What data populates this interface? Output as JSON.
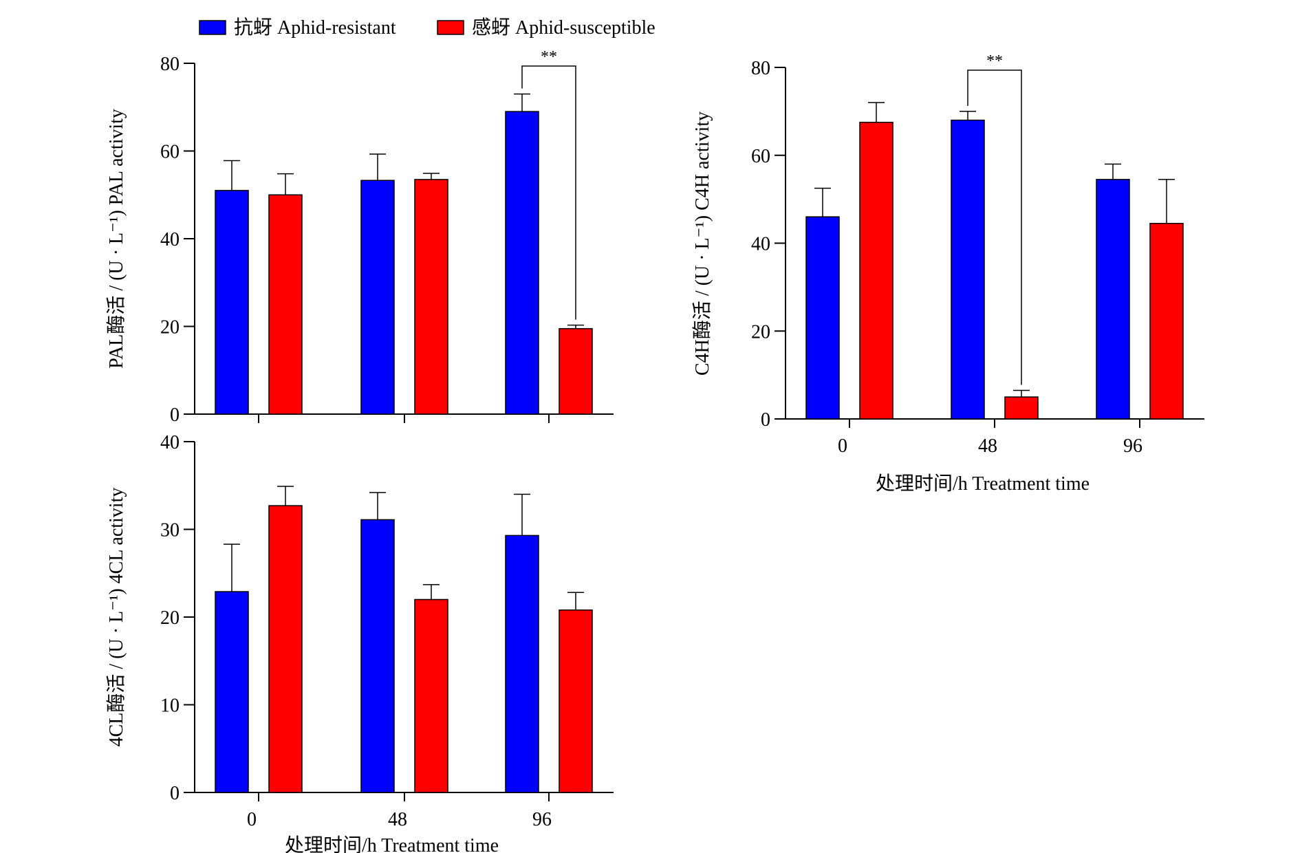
{
  "legend": {
    "position": "top",
    "entries": [
      {
        "label": "抗蚜 Aphid-resistant",
        "color": "#0000ff"
      },
      {
        "label": "感蚜 Aphid-susceptible",
        "color": "#ff0000"
      }
    ]
  },
  "chart_data": [
    {
      "id": "pal",
      "type": "bar",
      "ylabel": "PAL酶活 / (U · L⁻¹)  PAL activity",
      "xlabel": "",
      "categories": [
        "0",
        "48",
        "96"
      ],
      "show_category_labels": false,
      "ylim": [
        0,
        80
      ],
      "yticks": [
        0,
        20,
        40,
        60,
        80
      ],
      "series": [
        {
          "name": "抗蚜 Aphid-resistant",
          "color": "#0000ff",
          "values": [
            51,
            53.3,
            69
          ],
          "errors": [
            6.8,
            6,
            4
          ]
        },
        {
          "name": "感蚜 Aphid-susceptible",
          "color": "#ff0000",
          "values": [
            50,
            53.5,
            19.5
          ],
          "errors": [
            4.8,
            1.4,
            0.8
          ]
        }
      ],
      "significance": [
        {
          "label": "**",
          "category_index": 2
        }
      ]
    },
    {
      "id": "c4h",
      "type": "bar",
      "ylabel": "C4H酶活 / (U · L⁻¹)  C4H activity",
      "xlabel": "处理时间/h Treatment time",
      "categories": [
        "0",
        "48",
        "96"
      ],
      "show_category_labels": true,
      "ylim": [
        0,
        80
      ],
      "yticks": [
        0,
        20,
        40,
        60,
        80
      ],
      "series": [
        {
          "name": "抗蚜 Aphid-resistant",
          "color": "#0000ff",
          "values": [
            46,
            68,
            54.5
          ],
          "errors": [
            6.5,
            2,
            3.5
          ]
        },
        {
          "name": "感蚜 Aphid-susceptible",
          "color": "#ff0000",
          "values": [
            67.5,
            5,
            44.5
          ],
          "errors": [
            4.5,
            1.5,
            10
          ]
        }
      ],
      "significance": [
        {
          "label": "**",
          "category_index": 1
        }
      ]
    },
    {
      "id": "4cl",
      "type": "bar",
      "ylabel": "4CL酶活 / (U · L⁻¹)  4CL activity",
      "xlabel": "处理时间/h Treatment time",
      "categories": [
        "0",
        "48",
        "96"
      ],
      "show_category_labels": true,
      "ylim": [
        0,
        40
      ],
      "yticks": [
        0,
        10,
        20,
        30,
        40
      ],
      "series": [
        {
          "name": "抗蚜 Aphid-resistant",
          "color": "#0000ff",
          "values": [
            22.9,
            31.1,
            29.3
          ],
          "errors": [
            5.4,
            3.1,
            4.7
          ]
        },
        {
          "name": "感蚜 Aphid-susceptible",
          "color": "#ff0000",
          "values": [
            32.7,
            22,
            20.8
          ],
          "errors": [
            2.2,
            1.7,
            2
          ]
        }
      ],
      "significance": []
    }
  ]
}
